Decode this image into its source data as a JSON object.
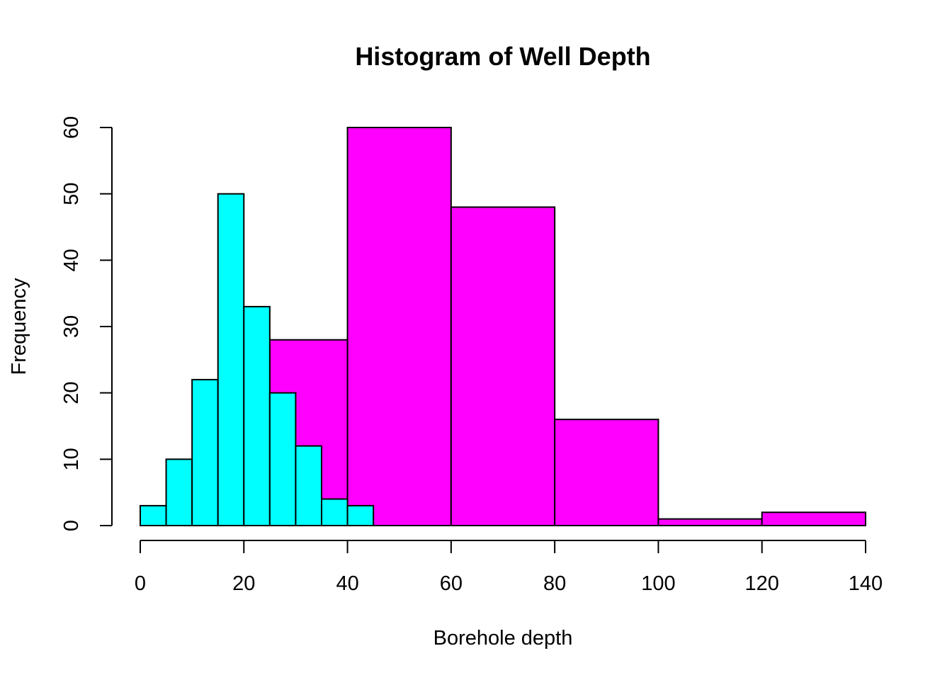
{
  "chart_data": {
    "type": "bar",
    "title": "Histogram of Well Depth",
    "xlabel": "Borehole depth",
    "ylabel": "Frequency",
    "xlim": [
      0,
      140
    ],
    "ylim": [
      0,
      60
    ],
    "x_ticks": [
      0,
      20,
      40,
      60,
      80,
      100,
      120,
      140
    ],
    "y_ticks": [
      0,
      10,
      20,
      30,
      40,
      50,
      60
    ],
    "grid": false,
    "series": [
      {
        "color": "#ff00ff",
        "bins": [
          {
            "start": 25,
            "end": 40,
            "count": 28
          },
          {
            "start": 40,
            "end": 60,
            "count": 60
          },
          {
            "start": 60,
            "end": 80,
            "count": 48
          },
          {
            "start": 80,
            "end": 100,
            "count": 16
          },
          {
            "start": 100,
            "end": 120,
            "count": 1
          },
          {
            "start": 120,
            "end": 140,
            "count": 2
          }
        ]
      },
      {
        "color": "#00ffff",
        "bins": [
          {
            "start": 0,
            "end": 5,
            "count": 3
          },
          {
            "start": 5,
            "end": 10,
            "count": 10
          },
          {
            "start": 10,
            "end": 15,
            "count": 22
          },
          {
            "start": 15,
            "end": 20,
            "count": 50
          },
          {
            "start": 20,
            "end": 25,
            "count": 33
          },
          {
            "start": 25,
            "end": 30,
            "count": 20
          },
          {
            "start": 30,
            "end": 35,
            "count": 12
          },
          {
            "start": 35,
            "end": 40,
            "count": 4
          },
          {
            "start": 40,
            "end": 45,
            "count": 3
          }
        ]
      }
    ]
  }
}
